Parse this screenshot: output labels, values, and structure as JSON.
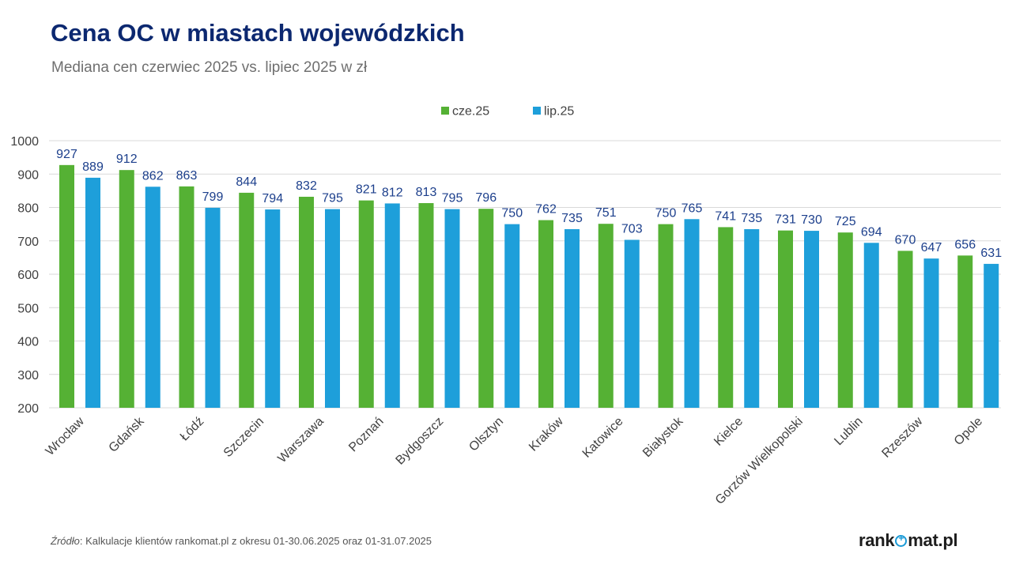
{
  "title": "Cena OC w miastach wojewódzkich",
  "subtitle": "Mediana cen czerwiec 2025 vs. lipiec 2025 w zł",
  "source": {
    "label": "Źródło",
    "text": ": Kalkulacje klientów rankomat.pl z okresu 01-30.06.2025 oraz 01-31.07.2025"
  },
  "logo": {
    "part1": "rank",
    "part2": "mat.pl",
    "icon": "logo-o-plus-icon"
  },
  "colors": {
    "series1": "#55b134",
    "series2": "#1e9fda",
    "label": "#1c3f8c",
    "grid": "#d9d9d9",
    "axis_text": "#404040"
  },
  "chart_data": {
    "type": "bar",
    "title": "Cena OC w miastach wojewódzkich",
    "subtitle": "Mediana cen czerwiec 2025 vs. lipiec 2025 w zł",
    "xlabel": "",
    "ylabel": "",
    "ylim": [
      200,
      1000
    ],
    "yticks": [
      200,
      300,
      400,
      500,
      600,
      700,
      800,
      900,
      1000
    ],
    "grid": true,
    "legend": "top-center",
    "categories": [
      "Wrocław",
      "Gdańsk",
      "Łódź",
      "Szczecin",
      "Warszawa",
      "Poznań",
      "Bydgoszcz",
      "Olsztyn",
      "Kraków",
      "Katowice",
      "Białystok",
      "Kielce",
      "Gorzów Wielkopolski",
      "Lublin",
      "Rzeszów",
      "Opole"
    ],
    "series": [
      {
        "name": "cze.25",
        "color": "#55b134",
        "values": [
          927,
          912,
          863,
          844,
          832,
          821,
          813,
          796,
          762,
          751,
          750,
          741,
          731,
          725,
          670,
          656
        ]
      },
      {
        "name": "lip.25",
        "color": "#1e9fda",
        "values": [
          889,
          862,
          799,
          794,
          795,
          812,
          795,
          750,
          735,
          703,
          765,
          735,
          730,
          694,
          647,
          631
        ]
      }
    ]
  }
}
